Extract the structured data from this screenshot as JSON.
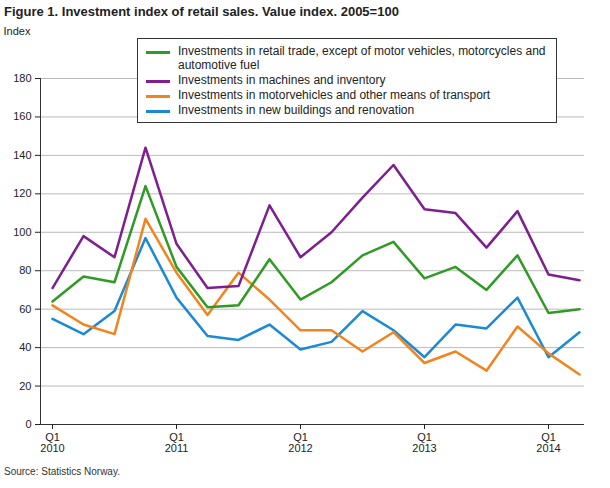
{
  "chart_data": {
    "type": "line",
    "title": "Figure 1. Investment index of retail sales. Value index. 2005=100",
    "ylabel": "Index",
    "source": "Source: Statistics Norway.",
    "categories": [
      "Q1\n2010",
      null,
      null,
      null,
      "Q1\n2011",
      null,
      null,
      null,
      "Q1\n2012",
      null,
      null,
      null,
      "Q1\n2013",
      null,
      null,
      null,
      "Q1\n2014",
      null
    ],
    "series": [
      {
        "name": "Investments in retail trade, except of motor vehicles, motorcycles and automotive fuel",
        "color": "#2f9a24",
        "values": [
          64,
          77,
          74,
          124,
          82,
          61,
          62,
          86,
          65,
          74,
          88,
          95,
          76,
          82,
          70,
          88,
          58,
          60
        ]
      },
      {
        "name": "Investments in machines and inventory",
        "color": "#7e1e91",
        "values": [
          71,
          98,
          87,
          144,
          94,
          71,
          72,
          114,
          87,
          100,
          118,
          135,
          112,
          110,
          92,
          111,
          78,
          75
        ]
      },
      {
        "name": "Investments in motorvehicles and other means of transport",
        "color": "#f2841f",
        "values": [
          62,
          52,
          47,
          107,
          79,
          57,
          79,
          65,
          49,
          49,
          38,
          48,
          32,
          38,
          28,
          51,
          37,
          26
        ]
      },
      {
        "name": "Investments in new buildings and renovation",
        "color": "#1b8ad3",
        "values": [
          55,
          47,
          59,
          97,
          66,
          46,
          44,
          52,
          39,
          43,
          59,
          49,
          35,
          52,
          50,
          66,
          35,
          48
        ]
      }
    ],
    "ylim": [
      0,
      180
    ],
    "yticks": [
      0,
      20,
      40,
      60,
      80,
      100,
      120,
      140,
      160,
      180
    ],
    "grid": true,
    "legend": "top"
  }
}
